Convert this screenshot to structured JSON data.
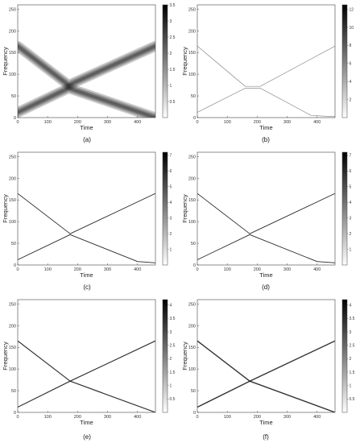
{
  "figure": {
    "panels": [
      {
        "caption": "(a)"
      },
      {
        "caption": "(b)"
      },
      {
        "caption": "(c)"
      },
      {
        "caption": "(d)"
      },
      {
        "caption": "(e)"
      },
      {
        "caption": "(f)"
      }
    ]
  },
  "chart_data": [
    {
      "type": "heatmap",
      "panel": "(a)",
      "xlabel": "Time",
      "ylabel": "Frequency",
      "xlim": [
        0,
        460
      ],
      "ylim": [
        0,
        260
      ],
      "xticks": [
        "0",
        "100",
        "200",
        "300",
        "400"
      ],
      "yticks": [
        "0",
        "50",
        "100",
        "150",
        "200",
        "250"
      ],
      "colorbar": {
        "min": 0,
        "max": 3.5,
        "ticks": [
          "0.5",
          "1",
          "1.5",
          "2",
          "2.5",
          "3",
          "3.5"
        ]
      },
      "colormap": "white-to-black",
      "series": [
        {
          "x": [
            0,
            170,
            460
          ],
          "y": [
            165,
            75,
            165
          ]
        },
        {
          "x": [
            0,
            170,
            460
          ],
          "y": [
            12,
            68,
            0
          ]
        }
      ],
      "ridge_width": 10,
      "peak_intensity": 1.2
    },
    {
      "type": "heatmap",
      "panel": "(b)",
      "xlabel": "Time",
      "ylabel": "Frequency",
      "xlim": [
        0,
        460
      ],
      "ylim": [
        0,
        260
      ],
      "xticks": [
        "0",
        "100",
        "200",
        "300",
        "400"
      ],
      "yticks": [
        "0",
        "50",
        "100",
        "150",
        "200",
        "250"
      ],
      "colorbar": {
        "min": 0,
        "max": 12.5,
        "ticks": [
          "2",
          "4",
          "6",
          "8",
          "10",
          "12"
        ]
      },
      "colormap": "white-to-black",
      "series": [
        {
          "x": [
            0,
            160,
            210,
            460
          ],
          "y": [
            165,
            72,
            72,
            165
          ]
        },
        {
          "x": [
            0,
            160,
            210,
            380,
            460
          ],
          "y": [
            12,
            68,
            68,
            5,
            2
          ]
        }
      ],
      "ridge_width": 1.2,
      "peak_intensity": 0.45
    },
    {
      "type": "heatmap",
      "panel": "(c)",
      "xlabel": "Time",
      "ylabel": "Frequency",
      "xlim": [
        0,
        460
      ],
      "ylim": [
        0,
        260
      ],
      "xticks": [
        "0",
        "100",
        "200",
        "300",
        "400"
      ],
      "yticks": [
        "0",
        "50",
        "100",
        "150",
        "200",
        "250"
      ],
      "colorbar": {
        "min": 0,
        "max": 7.2,
        "ticks": [
          "1",
          "2",
          "3",
          "4",
          "5",
          "6",
          "7"
        ]
      },
      "colormap": "white-to-black",
      "series": [
        {
          "x": [
            0,
            175,
            460
          ],
          "y": [
            165,
            72,
            165
          ]
        },
        {
          "x": [
            0,
            175,
            400,
            460
          ],
          "y": [
            12,
            70,
            8,
            5
          ]
        }
      ],
      "ridge_width": 1.6,
      "peak_intensity": 0.85
    },
    {
      "type": "heatmap",
      "panel": "(d)",
      "xlabel": "Time",
      "ylabel": "Frequency",
      "xlim": [
        0,
        460
      ],
      "ylim": [
        0,
        260
      ],
      "xticks": [
        "0",
        "100",
        "200",
        "300",
        "400"
      ],
      "yticks": [
        "0",
        "50",
        "100",
        "150",
        "200",
        "250"
      ],
      "colorbar": {
        "min": 0,
        "max": 7.2,
        "ticks": [
          "1",
          "2",
          "3",
          "4",
          "5",
          "6",
          "7"
        ]
      },
      "colormap": "white-to-black",
      "series": [
        {
          "x": [
            0,
            175,
            460
          ],
          "y": [
            165,
            72,
            165
          ]
        },
        {
          "x": [
            0,
            175,
            400,
            460
          ],
          "y": [
            12,
            70,
            8,
            5
          ]
        }
      ],
      "ridge_width": 1.6,
      "peak_intensity": 0.85
    },
    {
      "type": "heatmap",
      "panel": "(e)",
      "xlabel": "Time",
      "ylabel": "Frequency",
      "xlim": [
        0,
        460
      ],
      "ylim": [
        0,
        260
      ],
      "xticks": [
        "0",
        "100",
        "200",
        "300",
        "400"
      ],
      "yticks": [
        "0",
        "50",
        "100",
        "150",
        "200",
        "250"
      ],
      "colorbar": {
        "min": 0,
        "max": 4.2,
        "ticks": [
          "0.5",
          "1",
          "1.5",
          "2",
          "2.5",
          "3",
          "3.5",
          "4"
        ]
      },
      "colormap": "white-to-black",
      "series": [
        {
          "x": [
            0,
            175,
            460
          ],
          "y": [
            165,
            72,
            0
          ]
        },
        {
          "x": [
            0,
            175,
            460
          ],
          "y": [
            12,
            72,
            165
          ]
        }
      ],
      "ridge_width": 2.2,
      "peak_intensity": 0.8
    },
    {
      "type": "heatmap",
      "panel": "(f)",
      "xlabel": "Time",
      "ylabel": "Frequency",
      "xlim": [
        0,
        460
      ],
      "ylim": [
        0,
        260
      ],
      "xticks": [
        "0",
        "100",
        "200",
        "300",
        "400"
      ],
      "yticks": [
        "0",
        "50",
        "100",
        "150",
        "200",
        "250"
      ],
      "colorbar": {
        "min": 0,
        "max": 4.2,
        "ticks": [
          "0.5",
          "1",
          "1.5",
          "2",
          "2.5",
          "3",
          "3.5",
          "4"
        ]
      },
      "colormap": "white-to-black",
      "series": [
        {
          "x": [
            0,
            175,
            460
          ],
          "y": [
            165,
            72,
            0
          ]
        },
        {
          "x": [
            0,
            175,
            460
          ],
          "y": [
            12,
            72,
            165
          ]
        }
      ],
      "ridge_width": 2.6,
      "peak_intensity": 0.8
    }
  ]
}
